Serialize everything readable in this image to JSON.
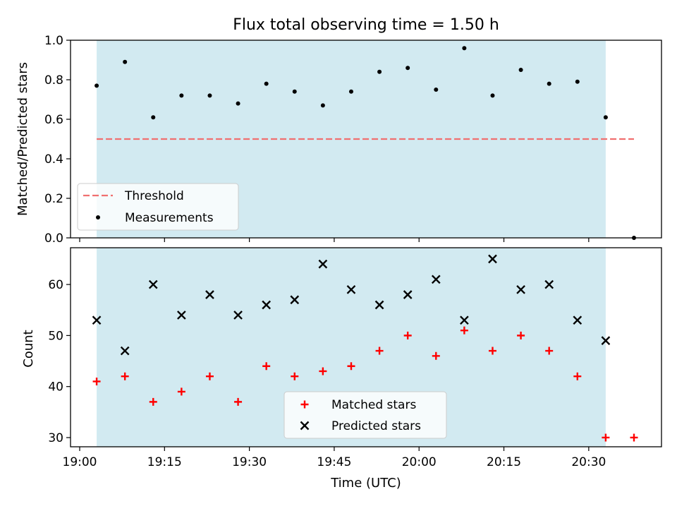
{
  "chart_data": [
    {
      "type": "scatter",
      "title": "Flux total observing time = 1.50 h",
      "ylabel": "Matched/Predicted stars",
      "xlabel": "",
      "ylim": [
        0,
        1
      ],
      "yticks": [
        "0.0",
        "0.2",
        "0.4",
        "0.6",
        "0.8",
        "1.0"
      ],
      "grid": false,
      "legend": {
        "placement": "lower-left",
        "entries": [
          "Threshold",
          "Measurements"
        ]
      },
      "shaded_span": [
        "19:03",
        "20:33"
      ],
      "threshold": {
        "name": "Threshold",
        "value": 0.5,
        "x": [
          "19:03",
          "20:38"
        ],
        "color": "#f07070",
        "style": "dashed"
      },
      "series": [
        {
          "name": "Measurements",
          "marker": "dot",
          "color": "#000000",
          "x": [
            "19:03",
            "19:08",
            "19:13",
            "19:18",
            "19:23",
            "19:28",
            "19:33",
            "19:38",
            "19:43",
            "19:48",
            "19:53",
            "19:58",
            "20:03",
            "20:08",
            "20:13",
            "20:18",
            "20:23",
            "20:28",
            "20:33",
            "20:38"
          ],
          "y": [
            0.77,
            0.89,
            0.61,
            0.72,
            0.72,
            0.68,
            0.78,
            0.74,
            0.67,
            0.74,
            0.84,
            0.86,
            0.75,
            0.96,
            0.72,
            0.85,
            0.78,
            0.79,
            0.61,
            0.0
          ]
        }
      ]
    },
    {
      "type": "scatter",
      "xlabel": "Time (UTC)",
      "ylabel": "Count",
      "ylim": [
        28.2,
        67.2
      ],
      "yticks": [
        "30",
        "40",
        "50",
        "60"
      ],
      "xticks": [
        "19:00",
        "19:15",
        "19:30",
        "19:45",
        "20:00",
        "20:15",
        "20:30"
      ],
      "grid": false,
      "legend": {
        "placement": "lower-center",
        "entries": [
          "Matched stars",
          "Predicted stars"
        ]
      },
      "shaded_span": [
        "19:03",
        "20:33"
      ],
      "series": [
        {
          "name": "Matched stars",
          "marker": "plus",
          "color": "#ff0000",
          "x": [
            "19:03",
            "19:08",
            "19:13",
            "19:18",
            "19:23",
            "19:28",
            "19:33",
            "19:38",
            "19:43",
            "19:48",
            "19:53",
            "19:58",
            "20:03",
            "20:08",
            "20:13",
            "20:18",
            "20:23",
            "20:28",
            "20:33",
            "20:38"
          ],
          "y": [
            41,
            42,
            37,
            39,
            42,
            37,
            44,
            42,
            43,
            44,
            47,
            50,
            46,
            51,
            47,
            50,
            47,
            42,
            30,
            30
          ]
        },
        {
          "name": "Predicted stars",
          "marker": "x",
          "color": "#000000",
          "x": [
            "19:03",
            "19:08",
            "19:13",
            "19:18",
            "19:23",
            "19:28",
            "19:33",
            "19:38",
            "19:43",
            "19:48",
            "19:53",
            "19:58",
            "20:03",
            "20:08",
            "20:13",
            "20:18",
            "20:23",
            "20:28",
            "20:33"
          ],
          "y": [
            53,
            47,
            60,
            54,
            58,
            54,
            56,
            57,
            64,
            59,
            56,
            58,
            61,
            53,
            65,
            59,
            60,
            53,
            49
          ]
        }
      ]
    }
  ],
  "colors": {
    "span": "#add8e6",
    "threshold": "#f07070",
    "matched": "#ff0000",
    "predicted": "#000000"
  }
}
